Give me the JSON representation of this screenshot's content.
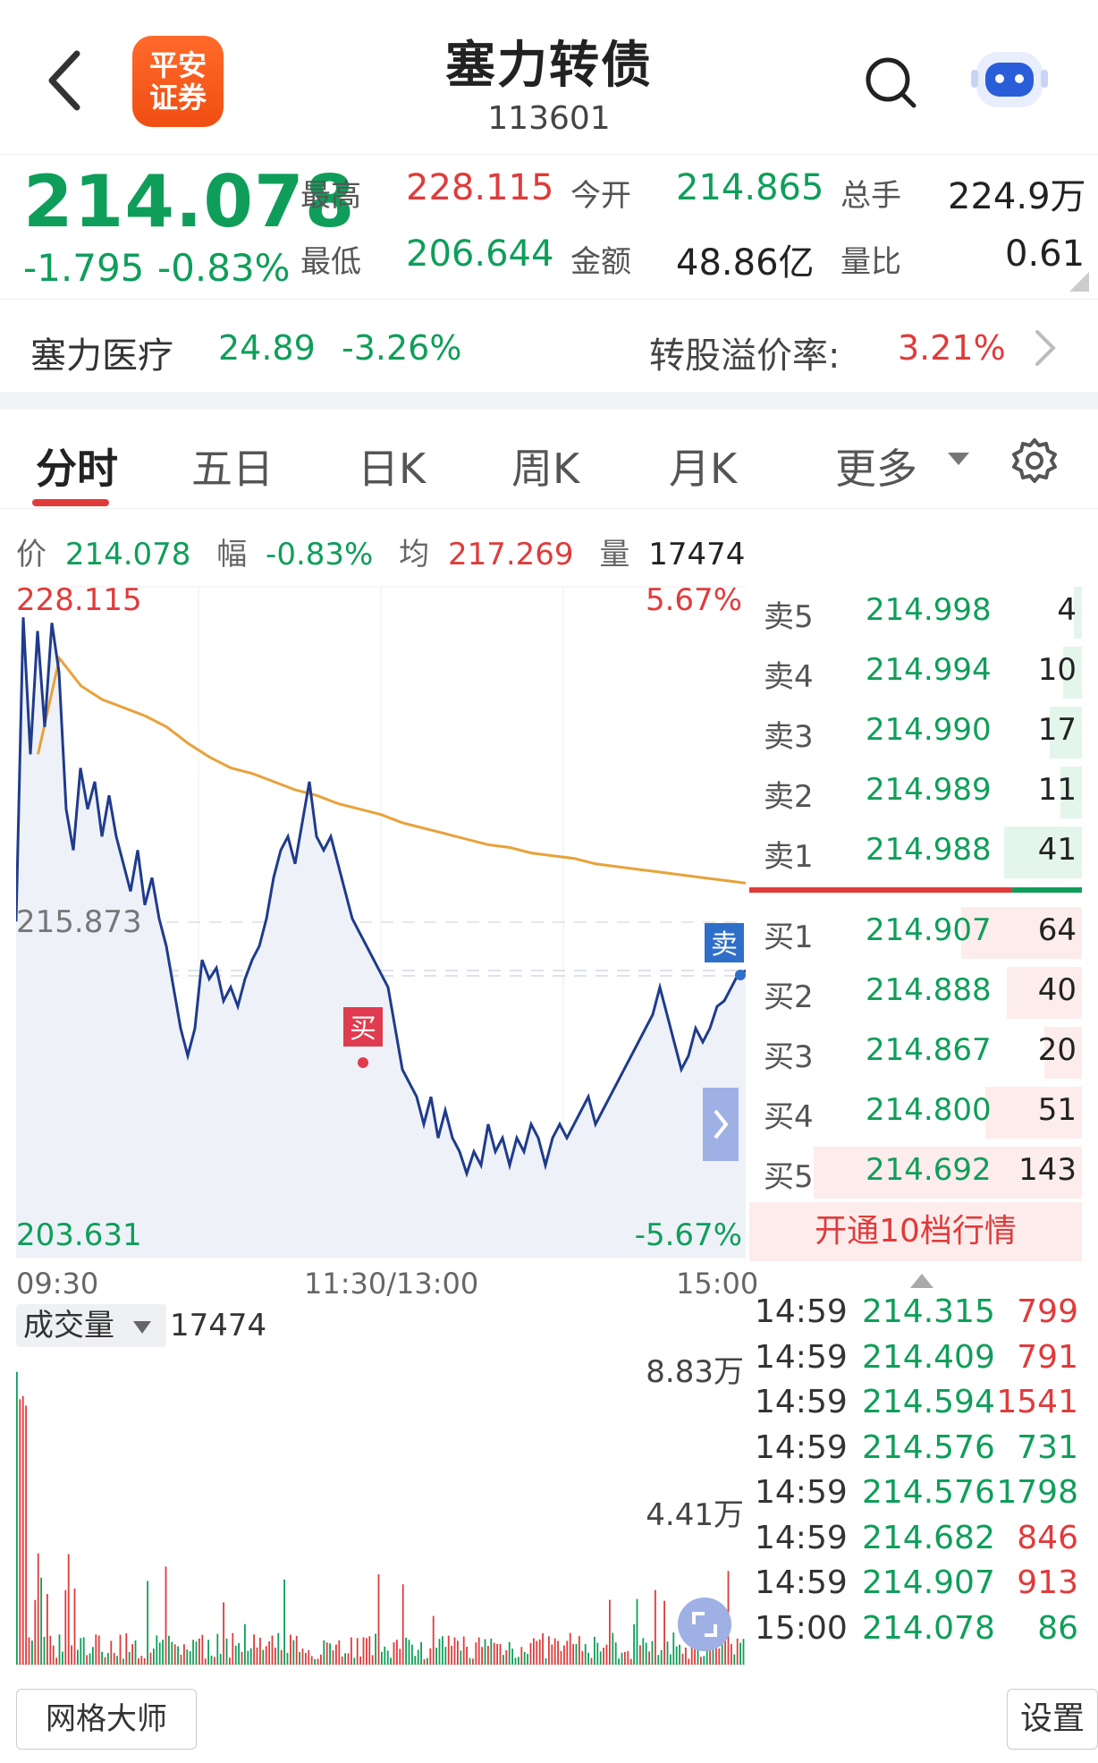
{
  "header": {
    "logo_line1": "平安",
    "logo_line2": "证券",
    "title": "塞力转债",
    "code": "113601"
  },
  "quote": {
    "price": "214.078",
    "change": "-1.795",
    "change_pct": "-0.83%",
    "high_label": "最高",
    "high": "228.115",
    "open_label": "今开",
    "open": "214.865",
    "total_hands_label": "总手",
    "total_hands": "224.9万",
    "low_label": "最低",
    "low": "206.644",
    "amount_label": "金额",
    "amount": "48.86亿",
    "volume_ratio_label": "量比",
    "volume_ratio": "0.61"
  },
  "stock": {
    "name": "塞力医疗",
    "price": "24.89",
    "change_pct": "-3.26%",
    "premium_label": "转股溢价率:",
    "premium": "3.21%"
  },
  "tabs": [
    "分时",
    "五日",
    "日K",
    "周K",
    "月K",
    "更多"
  ],
  "infoline": {
    "price_label": "价",
    "price": "214.078",
    "amp_label": "幅",
    "amp": "-0.83%",
    "avg_label": "均",
    "avg": "217.269",
    "vol_label": "量",
    "vol": "17474"
  },
  "chart_data": {
    "type": "line",
    "y_top": "228.115",
    "y_mid": "215.873",
    "y_bottom": "203.631",
    "pct_top": "5.67%",
    "pct_bottom": "-5.67%",
    "ylim": [
      203.631,
      228.115
    ],
    "x_labels": [
      "09:30",
      "11:30/13:00",
      "15:00"
    ],
    "buy_marker": "买",
    "sell_marker": "卖",
    "series": [
      {
        "values": [
          215.9,
          227.0,
          222.0,
          226.5,
          223.0,
          226.8,
          225.0,
          220.0,
          218.5,
          221.5,
          220.0,
          221.0,
          219.0,
          220.5,
          219.0,
          218.0,
          217.0,
          218.5,
          216.5,
          217.5,
          216.0,
          215.0,
          213.5,
          212.0,
          211.0,
          212.0,
          214.5,
          213.8,
          214.2,
          213.0,
          213.5,
          212.8,
          213.8,
          214.5,
          215.0,
          216.0,
          217.5,
          218.5,
          219.0,
          218.0,
          219.5,
          221.0,
          219.0,
          218.5,
          219.0,
          218.0,
          217.0,
          216.0,
          215.5,
          215.0,
          214.5,
          214.0,
          213.5,
          212.0,
          210.5,
          210.0,
          209.5,
          208.5,
          209.5,
          208.0,
          209.0,
          208.0,
          207.5,
          206.7,
          207.5,
          207.0,
          208.5,
          207.5,
          208.0,
          207.0,
          208.0,
          207.5,
          208.5,
          208.0,
          207.0,
          208.0,
          208.5,
          208.0,
          208.5,
          209.0,
          209.5,
          208.5,
          209.0,
          209.5,
          210.0,
          210.5,
          211.0,
          211.5,
          212.0,
          212.5,
          213.5,
          212.5,
          211.5,
          210.5,
          211.0,
          212.0,
          211.5,
          212.0,
          212.8,
          213.0,
          213.5,
          214.0,
          214.1
        ],
        "color": "#1f3b8c"
      },
      {
        "values": [
          222.0,
          225.5,
          224.5,
          224.0,
          223.7,
          223.4,
          223.0,
          222.4,
          221.9,
          221.5,
          221.3,
          221.0,
          220.7,
          220.5,
          220.2,
          220.0,
          219.8,
          219.5,
          219.3,
          219.1,
          218.9,
          218.7,
          218.6,
          218.4,
          218.3,
          218.2,
          218.0,
          217.9,
          217.8,
          217.7,
          217.6,
          217.5,
          217.4,
          217.3
        ],
        "color": "#e8a23a"
      }
    ]
  },
  "orderbook": {
    "sell": [
      {
        "label": "卖5",
        "price": "214.998",
        "vol": "4",
        "ratio": 0.03
      },
      {
        "label": "卖4",
        "price": "214.994",
        "vol": "10",
        "ratio": 0.07
      },
      {
        "label": "卖3",
        "price": "214.990",
        "vol": "17",
        "ratio": 0.12
      },
      {
        "label": "卖2",
        "price": "214.989",
        "vol": "11",
        "ratio": 0.08
      },
      {
        "label": "卖1",
        "price": "214.988",
        "vol": "41",
        "ratio": 0.29
      }
    ],
    "buy": [
      {
        "label": "买1",
        "price": "214.907",
        "vol": "64",
        "ratio": 0.45
      },
      {
        "label": "买2",
        "price": "214.888",
        "vol": "40",
        "ratio": 0.28
      },
      {
        "label": "买3",
        "price": "214.867",
        "vol": "20",
        "ratio": 0.14
      },
      {
        "label": "买4",
        "price": "214.800",
        "vol": "51",
        "ratio": 0.36
      },
      {
        "label": "买5",
        "price": "214.692",
        "vol": "143",
        "ratio": 1.0
      }
    ],
    "open10": "开通10档行情"
  },
  "trades": [
    {
      "time": "14:59",
      "price": "214.315",
      "vol": "799",
      "dir": "red"
    },
    {
      "time": "14:59",
      "price": "214.409",
      "vol": "791",
      "dir": "red"
    },
    {
      "time": "14:59",
      "price": "214.594",
      "vol": "1541",
      "dir": "red"
    },
    {
      "time": "14:59",
      "price": "214.576",
      "vol": "731",
      "dir": "green"
    },
    {
      "time": "14:59",
      "price": "214.576",
      "vol": "1798",
      "dir": "green"
    },
    {
      "time": "14:59",
      "price": "214.682",
      "vol": "846",
      "dir": "red"
    },
    {
      "time": "14:59",
      "price": "214.907",
      "vol": "913",
      "dir": "red"
    },
    {
      "time": "15:00",
      "price": "214.078",
      "vol": "86",
      "dir": "green"
    }
  ],
  "volume": {
    "selector": "成交量",
    "value": "17474",
    "max_label": "8.83万",
    "mid_label": "4.41万"
  },
  "bottom": {
    "grid_master": "网格大师",
    "settings": "设置"
  }
}
